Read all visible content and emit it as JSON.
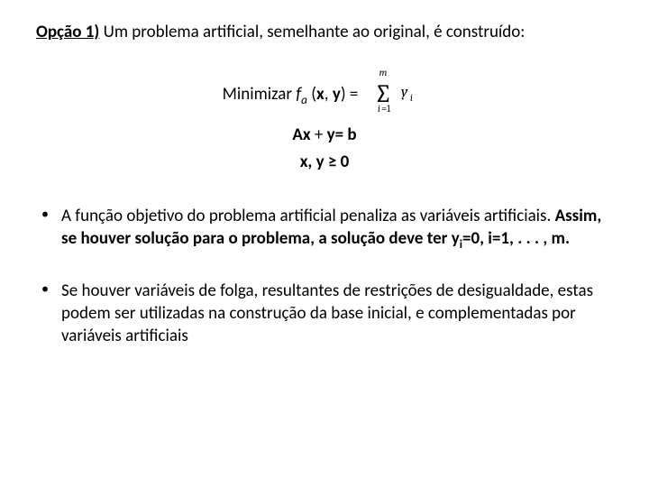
{
  "title": {
    "lead": "Opção 1)",
    "rest": " Um problema artificial, semelhante ao original, é construído:"
  },
  "math": {
    "line1_prefix": "Minimizar ",
    "line1_func": "f",
    "line1_sub": "a",
    "line1_args": " (",
    "line1_x": "x",
    "line1_comma": ", ",
    "line1_y": "y",
    "line1_eq": ") =",
    "line2_A": "A",
    "line2_x": "x",
    "line2_plus": " + ",
    "line2_y": "y",
    "line2_rhs": "= b",
    "line3_x": "x",
    "line3_comma": ", ",
    "line3_y": "y",
    "line3_geq": " ≥ 0",
    "sum": {
      "upper": "m",
      "lower_i": "i",
      "lower_eq": "=1",
      "term_y": "y",
      "term_sub": "i"
    }
  },
  "bullets": {
    "b1_plain": "A função objetivo do problema artificial penaliza as variáveis artificiais.  ",
    "b1_bold1": "Assim, se houver solução para o problema, a solução deve ter y",
    "b1_bold_sub": "i",
    "b1_bold2": "=0, i=1, . . . , m.",
    "b2": "Se houver variáveis de folga, resultantes de restrições de desigualdade, estas podem ser utilizadas na construção da base inicial, e complementadas por variáveis artificiais"
  }
}
